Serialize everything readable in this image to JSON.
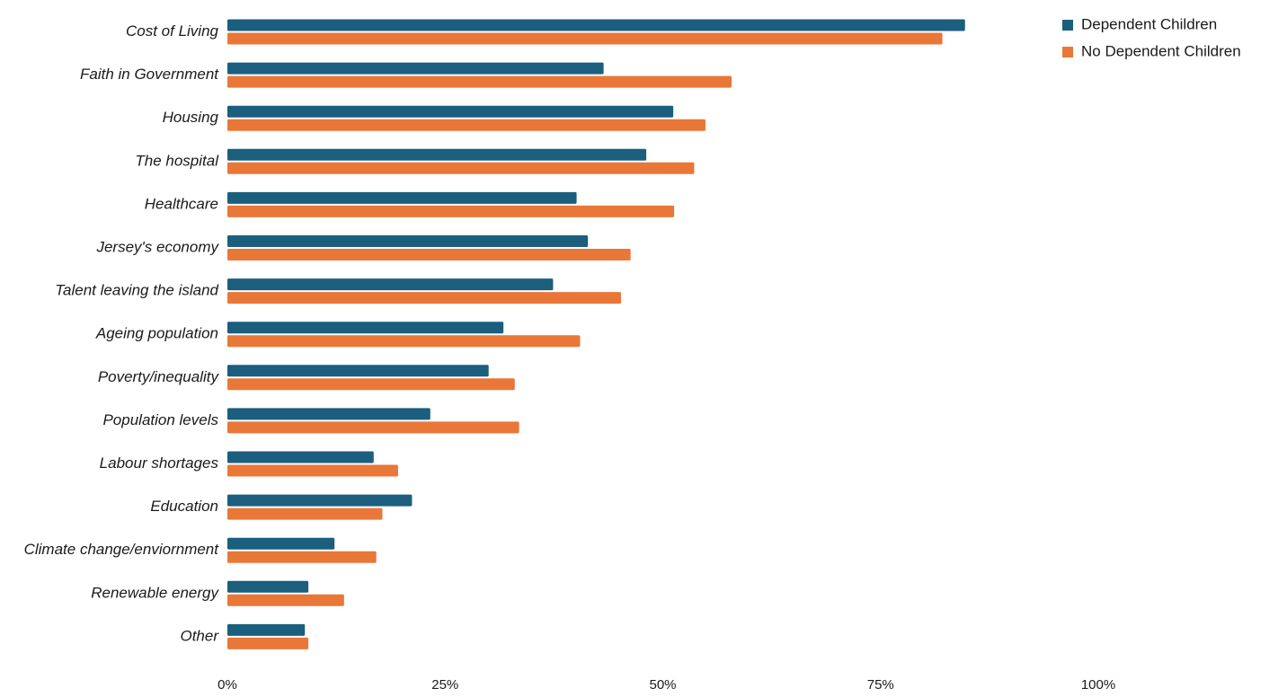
{
  "chart_data": {
    "type": "bar",
    "orientation": "horizontal",
    "categories": [
      "Cost of Living",
      "Faith in Government",
      "Housing",
      "The hospital",
      "Healthcare",
      "Jersey's economy",
      "Talent leaving the island",
      "Ageing population",
      "Poverty/inequality",
      "Population levels",
      "Labour shortages",
      "Education",
      "Climate change/enviornment",
      "Renewable energy",
      "Other"
    ],
    "series": [
      {
        "name": "Dependent Children",
        "color": "#1b5e7e",
        "values": [
          84.7,
          43.2,
          51.2,
          48.1,
          40.1,
          41.4,
          37.4,
          31.7,
          30.0,
          23.3,
          16.8,
          21.2,
          12.3,
          9.3,
          8.9
        ]
      },
      {
        "name": "No Dependent Children",
        "color": "#e97738",
        "values": [
          82.1,
          57.9,
          54.9,
          53.6,
          51.3,
          46.3,
          45.2,
          40.5,
          33.0,
          33.5,
          19.6,
          17.8,
          17.1,
          13.4,
          9.3
        ]
      }
    ],
    "xlim": [
      0,
      100
    ],
    "xticks": [
      0,
      25,
      50,
      75,
      100
    ],
    "xtick_labels": [
      "0%",
      "25%",
      "50%",
      "75%",
      "100%"
    ],
    "legend_position": "top-right",
    "grid": false,
    "title": "",
    "xlabel": "",
    "ylabel": ""
  }
}
